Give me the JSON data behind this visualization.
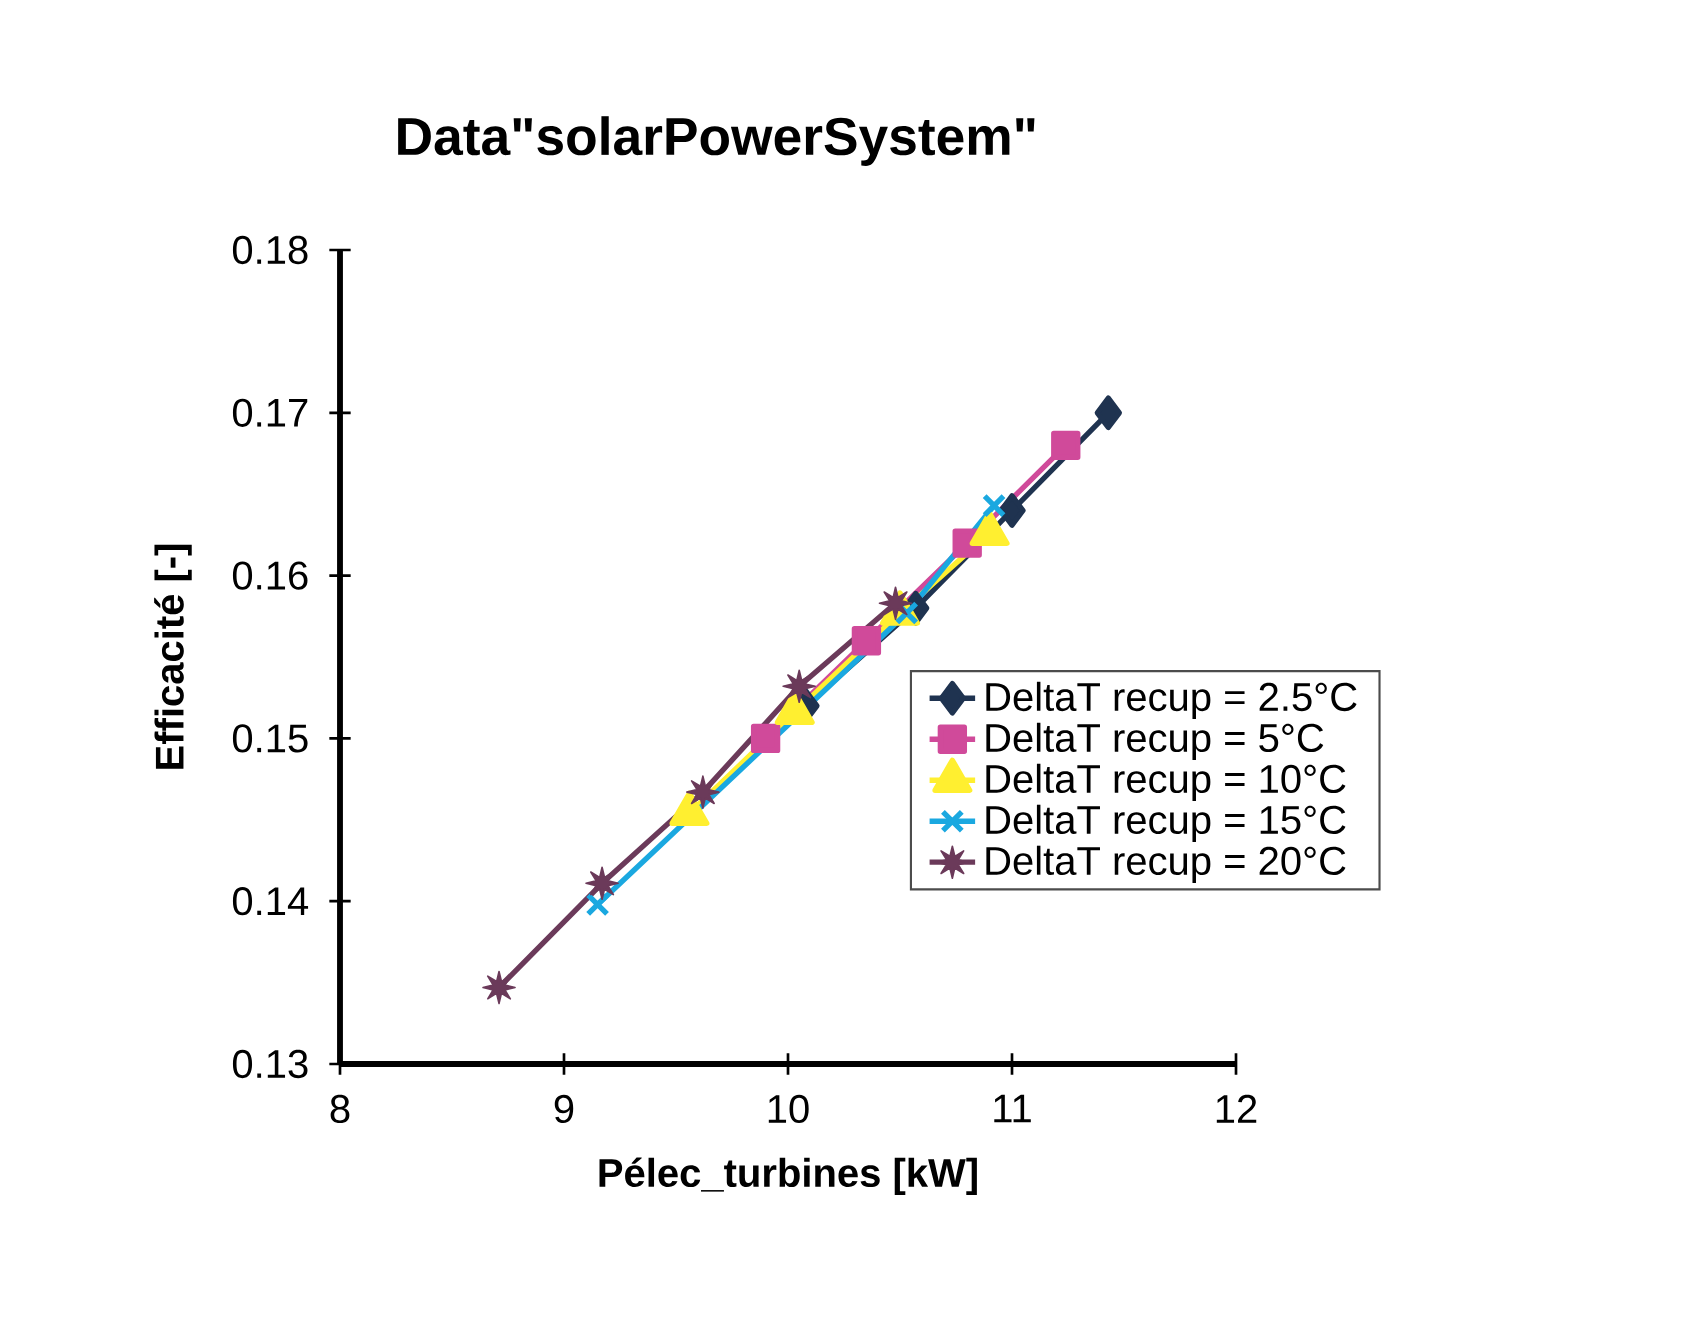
{
  "chart_data": {
    "type": "line",
    "title": "Data\"solarPowerSystem\"",
    "xlabel": "Pélec_turbines [kW]",
    "ylabel": "Efficacité [-]",
    "xlim": [
      8,
      12
    ],
    "xticks": [
      8,
      9,
      10,
      11,
      12
    ],
    "ylim": [
      0.13,
      0.18
    ],
    "yticks": [
      0.13,
      0.14,
      0.15,
      0.16,
      0.17,
      0.18
    ],
    "grid": false,
    "legend": "right",
    "series": [
      {
        "name": "DeltaT recup = 2.5°C",
        "color": "#1f3350",
        "marker": "diamond",
        "x": [
          10.08,
          10.57,
          11.0,
          11.43
        ],
        "values": [
          0.152,
          0.158,
          0.164,
          0.17
        ]
      },
      {
        "name": "DeltaT recup = 5°C",
        "color": "#d04a9a",
        "marker": "square",
        "x": [
          9.9,
          10.35,
          10.8,
          11.24
        ],
        "values": [
          0.15,
          0.156,
          0.162,
          0.168
        ]
      },
      {
        "name": "DeltaT recup = 10°C",
        "color": "#ffef30",
        "marker": "triangle",
        "x": [
          9.56,
          10.03,
          10.5,
          10.9
        ],
        "values": [
          0.1454,
          0.1516,
          0.1577,
          0.1626
        ]
      },
      {
        "name": "DeltaT recup = 15°C",
        "color": "#1aa8e0",
        "marker": "cross",
        "x": [
          9.15,
          10.53,
          10.92
        ],
        "values": [
          0.1398,
          0.1577,
          0.1643
        ]
      },
      {
        "name": "DeltaT recup = 20°C",
        "color": "#6b3a5a",
        "marker": "star",
        "x": [
          8.71,
          9.17,
          9.62,
          10.05,
          10.48
        ],
        "values": [
          0.1347,
          0.1411,
          0.1467,
          0.1532,
          0.1583
        ]
      }
    ]
  }
}
